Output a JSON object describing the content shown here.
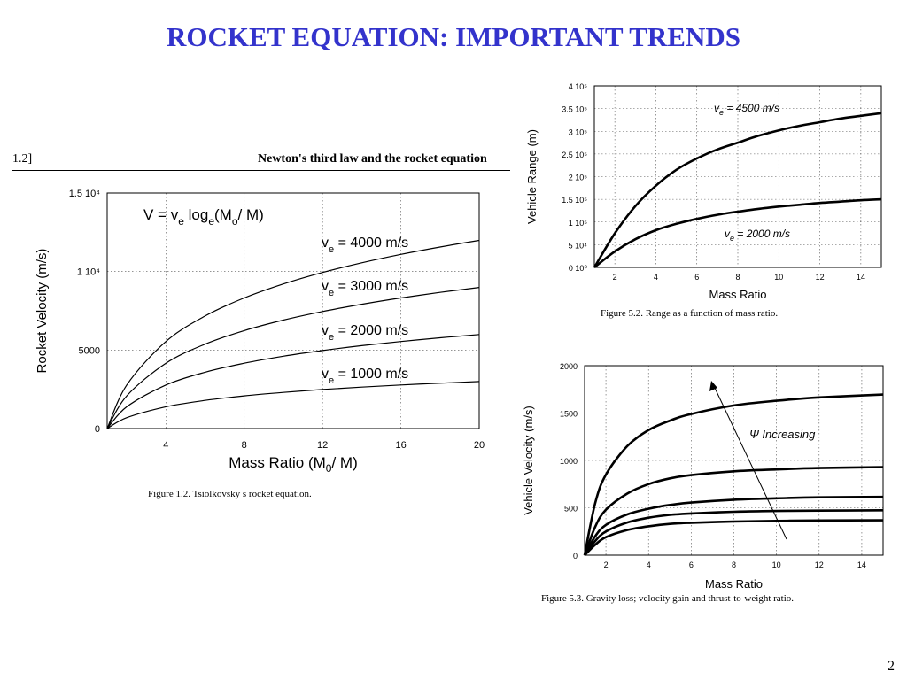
{
  "slide": {
    "title": "ROCKET EQUATION: IMPORTANT TRENDS",
    "page_number": "2"
  },
  "book_header": {
    "section_number": "1.2]",
    "section_title": "Newton's third law and the rocket equation"
  },
  "captions": {
    "fig1": "Figure 1.2.  Tsiolkovsky s rocket equation.",
    "fig2": "Figure 5.2.  Range as a function of mass ratio.",
    "fig3": "Figure 5.3.  Gravity loss; velocity gain and thrust-to-weight ratio."
  },
  "chart_data": [
    {
      "id": "fig-1-2",
      "type": "line",
      "xlabel": "Mass Ratio (M0/ M)",
      "ylabel": "Rocket Velocity (m/s)",
      "xlim": [
        1,
        20
      ],
      "ylim": [
        0,
        15000
      ],
      "xticks": [
        "4",
        "8",
        "12",
        "16",
        "20"
      ],
      "yticks": [
        "0",
        "5000",
        "1 10⁴",
        "1.5 10⁴"
      ],
      "grid": true,
      "equation": "V = ve loge(Mo/ M)",
      "x": [
        1,
        2,
        4,
        6,
        8,
        10,
        12,
        14,
        16,
        18,
        20
      ],
      "series": [
        {
          "name": "ve = 4000 m/s",
          "values": [
            0,
            2773,
            5545,
            7167,
            8318,
            9210,
            9940,
            10556,
            11090,
            11561,
            11983
          ]
        },
        {
          "name": "ve = 3000 m/s",
          "values": [
            0,
            2079,
            4159,
            5375,
            6238,
            6908,
            7455,
            7917,
            8318,
            8671,
            8987
          ]
        },
        {
          "name": "ve = 2000 m/s",
          "values": [
            0,
            1386,
            2773,
            3584,
            4159,
            4605,
            4970,
            5278,
            5545,
            5781,
            5991
          ]
        },
        {
          "name": "ve = 1000 m/s",
          "values": [
            0,
            693,
            1386,
            1792,
            2079,
            2303,
            2485,
            2639,
            2773,
            2890,
            2996
          ]
        }
      ]
    },
    {
      "id": "fig-5-2",
      "type": "line",
      "xlabel": "Mass Ratio",
      "ylabel": "Vehicle Range (m)",
      "xlim": [
        1,
        15
      ],
      "ylim": [
        0,
        400000
      ],
      "xticks": [
        "2",
        "4",
        "6",
        "8",
        "10",
        "12",
        "14"
      ],
      "yticks": [
        "0 10⁰",
        "5 10⁴",
        "1 10⁵",
        "1.5 10⁵",
        "2 10⁵",
        "2.5 10⁵",
        "3 10⁵",
        "3.5 10⁵",
        "4 10⁵"
      ],
      "grid": true,
      "x": [
        1,
        2,
        3,
        4,
        5,
        6,
        7,
        8,
        9,
        10,
        11,
        12,
        13,
        14,
        15
      ],
      "series": [
        {
          "name": "ve = 4500 m/s",
          "values": [
            0,
            75000,
            135000,
            180000,
            215000,
            240000,
            260000,
            275000,
            290000,
            302000,
            312000,
            320000,
            328000,
            334000,
            340000
          ]
        },
        {
          "name": "ve = 2000 m/s",
          "values": [
            0,
            35000,
            62000,
            82000,
            96000,
            107000,
            116000,
            123000,
            129000,
            134000,
            138000,
            142000,
            145000,
            148000,
            150000
          ]
        }
      ]
    },
    {
      "id": "fig-5-3",
      "type": "line",
      "xlabel": "Mass Ratio",
      "ylabel": "Vehicle Velocity (m/s)",
      "xlim": [
        1,
        15
      ],
      "ylim": [
        0,
        2000
      ],
      "xticks": [
        "2",
        "4",
        "6",
        "8",
        "10",
        "12",
        "14"
      ],
      "yticks": [
        "0",
        "500",
        "1000",
        "1500",
        "2000"
      ],
      "grid": true,
      "annotation": "Ψ Increasing",
      "x": [
        1,
        1.5,
        2,
        3,
        4,
        5,
        6,
        8,
        10,
        12,
        15
      ],
      "series": [
        {
          "values": [
            0,
            550,
            850,
            1150,
            1320,
            1420,
            1490,
            1580,
            1630,
            1665,
            1695
          ]
        },
        {
          "values": [
            0,
            300,
            480,
            650,
            750,
            810,
            845,
            885,
            905,
            920,
            930
          ]
        },
        {
          "values": [
            0,
            200,
            320,
            430,
            490,
            530,
            555,
            585,
            600,
            610,
            615
          ]
        },
        {
          "values": [
            0,
            150,
            250,
            345,
            395,
            425,
            440,
            458,
            466,
            470,
            474
          ]
        },
        {
          "values": [
            0,
            110,
            190,
            265,
            305,
            330,
            342,
            355,
            362,
            366,
            368
          ]
        }
      ]
    }
  ]
}
